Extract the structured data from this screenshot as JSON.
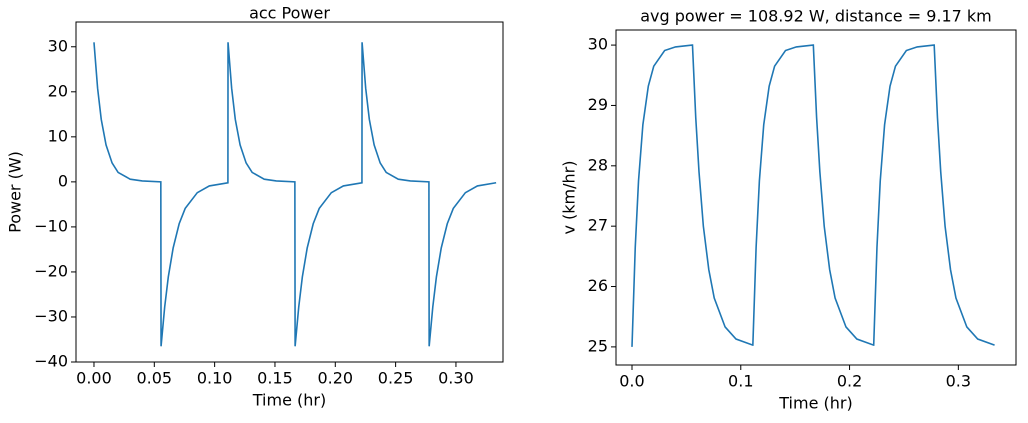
{
  "chart_data": [
    {
      "type": "line",
      "title": "acc Power",
      "x_label": "Time (hr)",
      "y_label": "Power (W)",
      "color": "#1f77b4",
      "x": [
        0,
        0.003,
        0.006,
        0.01,
        0.015,
        0.02,
        0.03,
        0.04,
        0.0554,
        0.0556,
        0.0586,
        0.0616,
        0.0656,
        0.0706,
        0.0756,
        0.0856,
        0.0956,
        0.111,
        0.1111,
        0.1141,
        0.1171,
        0.1211,
        0.1261,
        0.1311,
        0.1411,
        0.1511,
        0.1665,
        0.1667,
        0.1697,
        0.1727,
        0.1767,
        0.1817,
        0.1867,
        0.1967,
        0.2067,
        0.2221,
        0.2222,
        0.2252,
        0.2282,
        0.2322,
        0.2372,
        0.2422,
        0.2522,
        0.2622,
        0.2776,
        0.2778,
        0.2808,
        0.2838,
        0.2878,
        0.2928,
        0.2978,
        0.3078,
        0.3178,
        0.3333
      ],
      "values": [
        31,
        20.8,
        13.9,
        8.2,
        4.2,
        2.1,
        0.6,
        0.2,
        0.0,
        -36.5,
        -27.8,
        -21.1,
        -14.7,
        -9.3,
        -5.9,
        -2.4,
        -0.9,
        -0.2,
        31,
        20.8,
        13.9,
        8.2,
        4.2,
        2.1,
        0.6,
        0.2,
        0.0,
        -36.5,
        -27.8,
        -21.1,
        -14.7,
        -9.3,
        -5.9,
        -2.4,
        -0.9,
        -0.2,
        31,
        20.8,
        13.9,
        8.2,
        4.2,
        2.1,
        0.6,
        0.2,
        0.0,
        -36.5,
        -27.8,
        -21.1,
        -14.7,
        -9.3,
        -5.9,
        -2.4,
        -0.9,
        -0.2
      ],
      "xlim": [
        -0.0149,
        0.339
      ],
      "ylim": [
        -40,
        35.5
      ],
      "xticks": [
        {
          "value": 0,
          "label": "0.00"
        },
        0.05,
        {
          "value": 0.1,
          "label": "0.10"
        },
        0.15,
        {
          "value": 0.2,
          "label": "0.20"
        },
        0.25,
        {
          "value": 0.3,
          "label": "0.30"
        }
      ],
      "yticks": [
        {
          "value": -40,
          "label": "−40"
        },
        {
          "value": -30,
          "label": "−30"
        },
        {
          "value": -20,
          "label": "−20"
        },
        {
          "value": -10,
          "label": "−10"
        },
        0,
        10,
        20,
        30
      ]
    },
    {
      "type": "line",
      "title": "avg power = 108.92 W, distance = 9.17 km",
      "x_label": "Time (hr)",
      "y_label": "v (km/hr)",
      "color": "#1f77b4",
      "x": [
        0,
        0.003,
        0.006,
        0.01,
        0.015,
        0.02,
        0.03,
        0.04,
        0.0554,
        0.0556,
        0.0586,
        0.0616,
        0.0656,
        0.0706,
        0.0756,
        0.0856,
        0.0956,
        0.111,
        0.1111,
        0.1141,
        0.1171,
        0.1211,
        0.1261,
        0.1311,
        0.1411,
        0.1511,
        0.1665,
        0.1667,
        0.1697,
        0.1727,
        0.1767,
        0.1817,
        0.1867,
        0.1967,
        0.2067,
        0.2221,
        0.2222,
        0.2252,
        0.2282,
        0.2322,
        0.2372,
        0.2422,
        0.2522,
        0.2622,
        0.2776,
        0.2778,
        0.2808,
        0.2838,
        0.2878,
        0.2928,
        0.2978,
        0.3078,
        0.3178,
        0.3333
      ],
      "values": [
        25,
        26.65,
        27.75,
        28.68,
        29.32,
        29.65,
        29.91,
        29.97,
        30.0,
        30.0,
        28.8,
        27.9,
        27.0,
        26.28,
        25.81,
        25.33,
        25.13,
        25.03,
        25.03,
        26.65,
        27.75,
        28.68,
        29.32,
        29.65,
        29.91,
        29.97,
        30.0,
        30.0,
        28.8,
        27.9,
        27.0,
        26.28,
        25.81,
        25.33,
        25.13,
        25.03,
        25.03,
        26.65,
        27.75,
        28.68,
        29.32,
        29.65,
        29.91,
        29.97,
        30.0,
        30.0,
        28.8,
        27.9,
        27.0,
        26.28,
        25.81,
        25.33,
        25.13,
        25.03
      ],
      "xlim": [
        -0.0147,
        0.353
      ],
      "ylim": [
        24.7,
        30.25
      ],
      "xticks": [
        {
          "value": 0,
          "label": "0.0"
        },
        0.1,
        0.2,
        0.3
      ],
      "yticks": [
        25,
        26,
        27,
        28,
        29,
        30
      ]
    }
  ]
}
